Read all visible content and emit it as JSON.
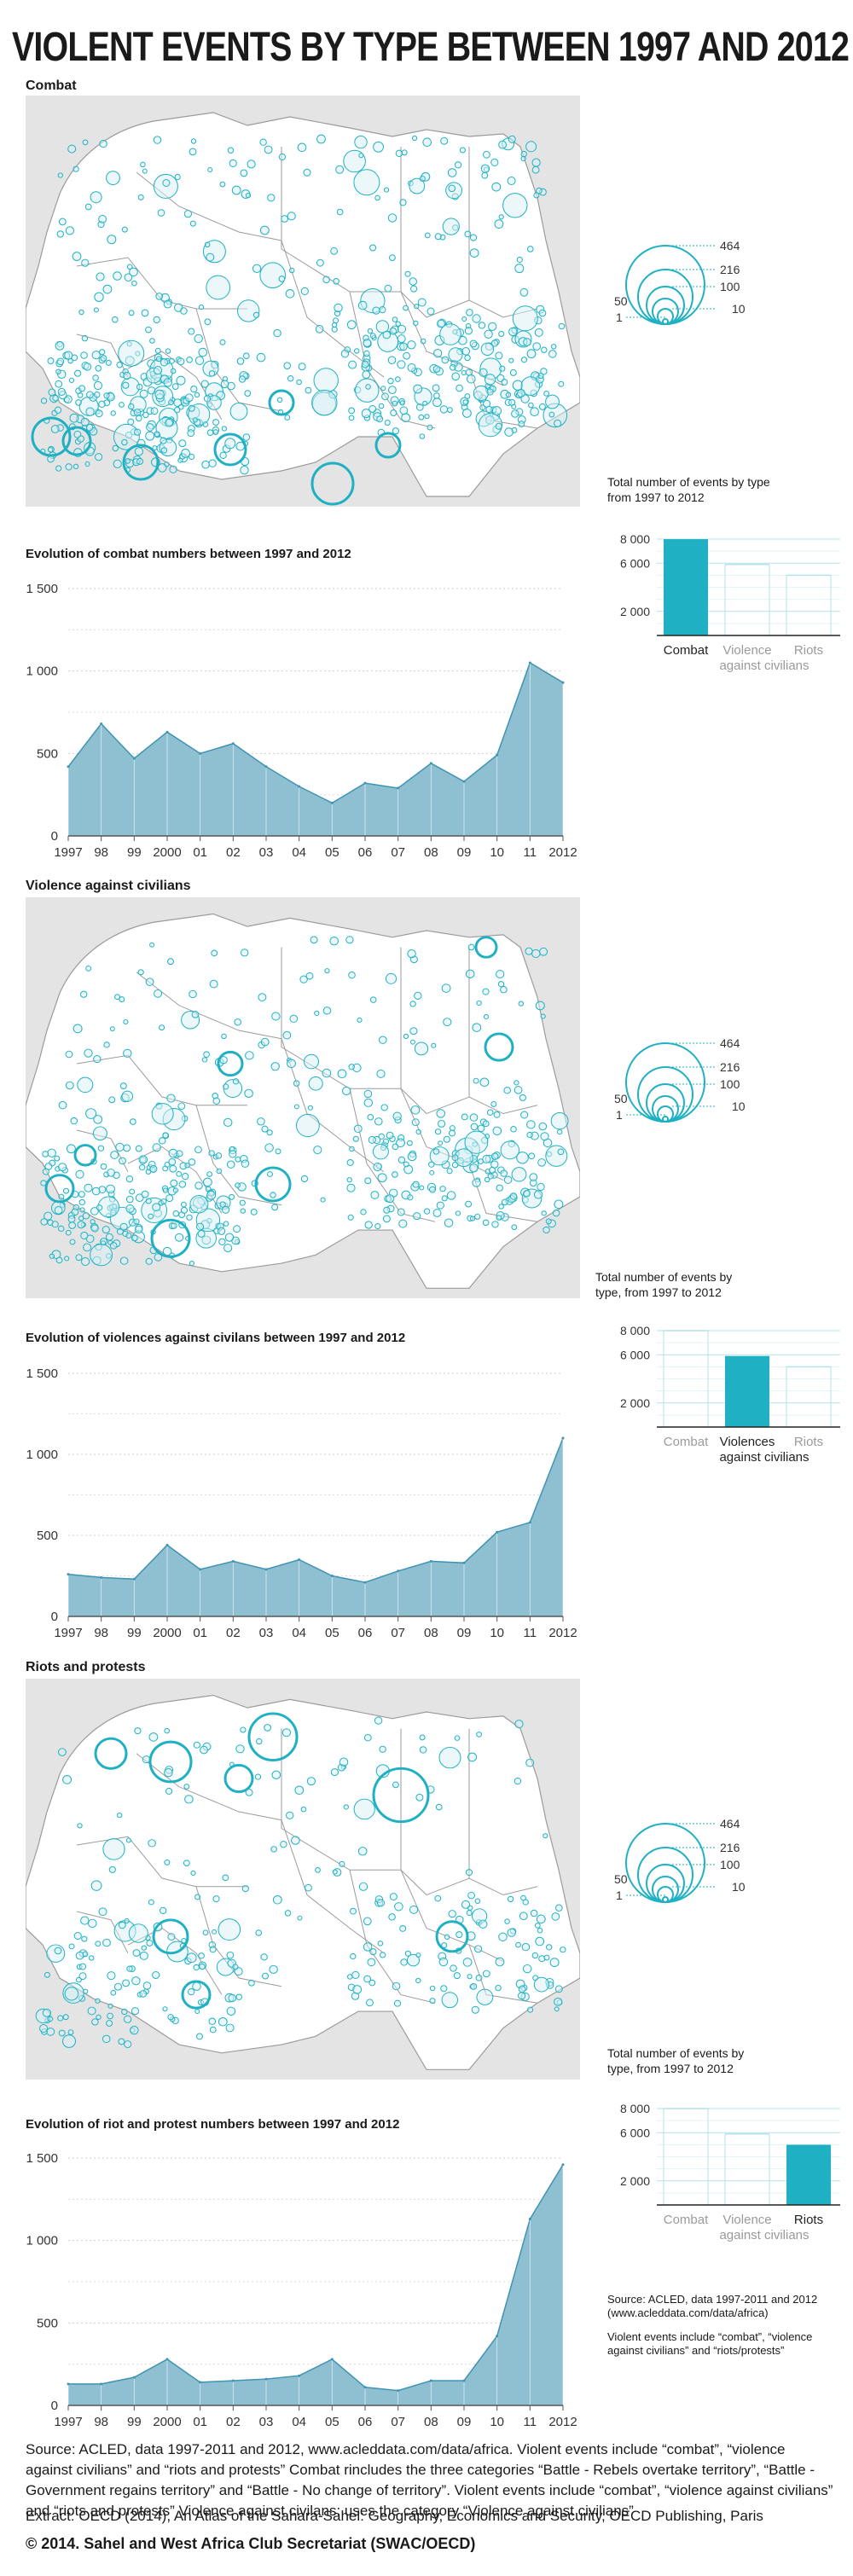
{
  "title": "VIOLENT EVENTS BY TYPE BETWEEN 1997 AND 2012",
  "sections": [
    {
      "name": "Combat",
      "chart_title": "Evolution of combat numbers between 1997 and 2012",
      "totals_title_lines": [
        "Total number of events by type",
        "from 1997 to 2012"
      ],
      "highlight": 0
    },
    {
      "name": "Violence against civilians",
      "chart_title": "Evolution of violences against civilans between 1997 and 2012",
      "totals_title_lines": [
        "Total number of events by",
        "type, from 1997 to 2012"
      ],
      "highlight": 1
    },
    {
      "name": "Riots and protests",
      "chart_title": "Evolution of riot and protest numbers between 1997 and 2012",
      "totals_title_lines": [
        "Total number of events by",
        "type, from 1997 to 2012"
      ],
      "highlight": 2
    }
  ],
  "legend": {
    "labels_right": [
      "464",
      "216",
      "100",
      "10"
    ],
    "labels_left": [
      "50",
      "1"
    ],
    "values": [
      464,
      216,
      100,
      50,
      10,
      1
    ]
  },
  "totals_categories": [
    [
      "Combat"
    ],
    [
      "Violence",
      "against civilians"
    ],
    [
      "Riots"
    ]
  ],
  "totals_categories_alt": [
    [
      "Combat"
    ],
    [
      "Violences",
      "against civilians"
    ],
    [
      "Riots"
    ]
  ],
  "colors": {
    "accent": "#1fb1c3",
    "area_fill": "#8fc0d2",
    "area_line": "#3f93b3",
    "muted_line": "#b6e3ea",
    "muted_text": "#9a9a9a",
    "map_bg": "#e4e4e4",
    "land": "#ffffff",
    "border": "#9b9b9b"
  },
  "chart_data": [
    {
      "type": "area",
      "title": "Evolution of combat numbers between 1997 and 2012",
      "x": [
        "1997",
        "98",
        "99",
        "2000",
        "01",
        "02",
        "03",
        "04",
        "05",
        "06",
        "07",
        "08",
        "09",
        "10",
        "11",
        "2012"
      ],
      "values": [
        420,
        680,
        470,
        630,
        500,
        560,
        420,
        300,
        200,
        320,
        290,
        440,
        330,
        490,
        1050,
        930
      ],
      "yticks": [
        0,
        500,
        1000,
        1500
      ],
      "ytick_labels": [
        "0",
        "500",
        "1 000",
        "1 500"
      ],
      "ylim": [
        0,
        1500
      ]
    },
    {
      "type": "area",
      "title": "Evolution of violences against civilans between 1997 and 2012",
      "x": [
        "1997",
        "98",
        "99",
        "2000",
        "01",
        "02",
        "03",
        "04",
        "05",
        "06",
        "07",
        "08",
        "09",
        "10",
        "11",
        "2012"
      ],
      "values": [
        260,
        240,
        230,
        440,
        290,
        340,
        290,
        350,
        250,
        210,
        280,
        340,
        330,
        520,
        580,
        1100
      ],
      "yticks": [
        0,
        500,
        1000,
        1500
      ],
      "ytick_labels": [
        "0",
        "500",
        "1 000",
        "1 500"
      ],
      "ylim": [
        0,
        1500
      ]
    },
    {
      "type": "area",
      "title": "Evolution of riot and protest numbers between 1997 and 2012",
      "x": [
        "1997",
        "98",
        "99",
        "2000",
        "01",
        "02",
        "03",
        "04",
        "05",
        "06",
        "07",
        "08",
        "09",
        "10",
        "11",
        "2012"
      ],
      "values": [
        130,
        130,
        170,
        280,
        140,
        150,
        160,
        180,
        280,
        110,
        90,
        150,
        150,
        420,
        1130,
        1460
      ],
      "yticks": [
        0,
        500,
        1000,
        1500
      ],
      "ytick_labels": [
        "0",
        "500",
        "1 000",
        "1 500"
      ],
      "ylim": [
        0,
        1500
      ]
    },
    {
      "type": "bar",
      "title": "Total number of events by type from 1997 to 2012",
      "categories": [
        "Combat",
        "Violence against civilians",
        "Riots"
      ],
      "values": [
        8000,
        5900,
        5000
      ],
      "yticks": [
        2000,
        6000,
        8000
      ],
      "ytick_labels": [
        "2 000",
        "6 000",
        "8 000"
      ],
      "ylim": [
        0,
        8500
      ]
    }
  ],
  "side_note": {
    "source_lines": [
      "Source: ACLED, data 1997-2011 and 2012",
      "(www.acleddata.com/data/africa)"
    ],
    "note_lines": [
      "Violent events include “combat”, “violence",
      "against civilians”  and  “riots/protests”"
    ]
  },
  "footer": {
    "source": "Source: ACLED, data 1997-2011 and 2012, www.acleddata.com/data/africa. Violent events include “combat”, “violence against civilians” and “riots and protests” Combat rincludes the three categories “Battle - Rebels overtake territory”, “Battle - Government regains territory” and “Battle - No change of territory”. Violent events include “combat”, “violence against civilians” and “riots and protests” Violence against civilans: uses the category “Violence against civilians”",
    "extract": "Extract: OECD (2014), An Atlas of the Sahara-Sahel: Geography, Economics  and Security, OECD Publishing, Paris",
    "copyright": "© 2014. Sahel and West Africa Club Secretariat (SWAC/OECD)"
  }
}
